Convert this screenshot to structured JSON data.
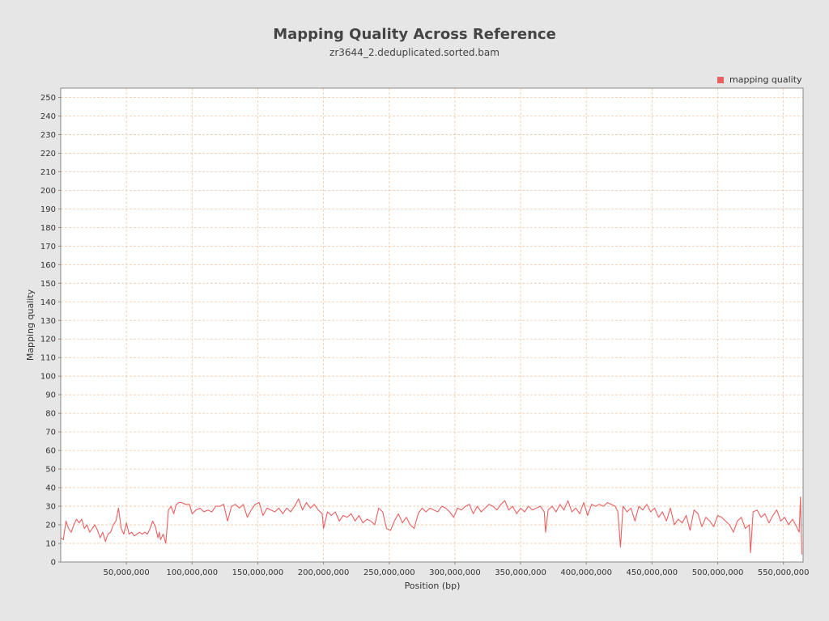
{
  "chart_data": {
    "type": "line",
    "title": "Mapping Quality Across Reference",
    "subtitle": "zr3644_2.deduplicated.sorted.bam",
    "xlabel": "Position (bp)",
    "ylabel": "Mapping quality",
    "xlim": [
      0,
      565000000
    ],
    "ylim": [
      0,
      255
    ],
    "x_ticks": [
      50000000,
      100000000,
      150000000,
      200000000,
      250000000,
      300000000,
      350000000,
      400000000,
      450000000,
      500000000,
      550000000
    ],
    "x_tick_labels": [
      "50,000,000",
      "100,000,000",
      "150,000,000",
      "200,000,000",
      "250,000,000",
      "300,000,000",
      "350,000,000",
      "400,000,000",
      "450,000,000",
      "500,000,000",
      "550,000,000"
    ],
    "y_ticks": [
      0,
      10,
      20,
      30,
      40,
      50,
      60,
      70,
      80,
      90,
      100,
      110,
      120,
      130,
      140,
      150,
      160,
      170,
      180,
      190,
      200,
      210,
      220,
      230,
      240,
      250
    ],
    "grid": true,
    "legend_position": "top-right",
    "series": [
      {
        "name": "mapping quality",
        "color": "#e86060",
        "x": [
          0,
          2000000,
          4000000,
          6000000,
          8000000,
          10000000,
          12000000,
          14000000,
          16000000,
          18000000,
          20000000,
          22000000,
          24000000,
          26000000,
          28000000,
          30000000,
          32000000,
          34000000,
          36000000,
          38000000,
          40000000,
          42000000,
          44000000,
          46000000,
          48000000,
          50000000,
          52000000,
          54000000,
          56000000,
          58000000,
          60000000,
          62000000,
          64000000,
          66000000,
          68000000,
          70000000,
          72000000,
          74000000,
          75000000,
          76000000,
          78000000,
          80000000,
          82000000,
          84000000,
          86000000,
          88000000,
          90000000,
          92000000,
          95000000,
          98000000,
          100000000,
          103000000,
          106000000,
          109000000,
          112000000,
          115000000,
          118000000,
          121000000,
          124000000,
          127000000,
          130000000,
          133000000,
          136000000,
          139000000,
          142000000,
          145000000,
          148000000,
          151000000,
          154000000,
          157000000,
          160000000,
          163000000,
          166000000,
          169000000,
          172000000,
          175000000,
          178000000,
          181000000,
          184000000,
          187000000,
          190000000,
          193000000,
          196000000,
          199000000,
          200000000,
          203000000,
          206000000,
          209000000,
          212000000,
          215000000,
          218000000,
          221000000,
          224000000,
          227000000,
          230000000,
          233000000,
          236000000,
          239000000,
          242000000,
          245000000,
          248000000,
          251000000,
          254000000,
          257000000,
          260000000,
          263000000,
          266000000,
          269000000,
          272000000,
          275000000,
          278000000,
          281000000,
          284000000,
          287000000,
          290000000,
          293000000,
          296000000,
          299000000,
          302000000,
          305000000,
          308000000,
          311000000,
          314000000,
          317000000,
          320000000,
          323000000,
          326000000,
          329000000,
          332000000,
          335000000,
          338000000,
          341000000,
          344000000,
          347000000,
          350000000,
          353000000,
          356000000,
          359000000,
          362000000,
          365000000,
          368000000,
          369000000,
          371000000,
          374000000,
          377000000,
          380000000,
          383000000,
          386000000,
          389000000,
          392000000,
          395000000,
          398000000,
          401000000,
          404000000,
          407000000,
          410000000,
          413000000,
          416000000,
          419000000,
          422000000,
          424000000,
          426000000,
          428000000,
          431000000,
          434000000,
          437000000,
          440000000,
          443000000,
          446000000,
          449000000,
          452000000,
          455000000,
          458000000,
          461000000,
          464000000,
          467000000,
          470000000,
          473000000,
          476000000,
          479000000,
          482000000,
          485000000,
          488000000,
          491000000,
          494000000,
          497000000,
          500000000,
          503000000,
          506000000,
          509000000,
          512000000,
          515000000,
          518000000,
          521000000,
          524000000,
          525000000,
          527000000,
          530000000,
          533000000,
          536000000,
          539000000,
          542000000,
          545000000,
          548000000,
          551000000,
          554000000,
          557000000,
          560000000,
          562000000,
          563000000,
          564000000
        ],
        "values": [
          13,
          12,
          22,
          18,
          16,
          20,
          23,
          21,
          23,
          18,
          20,
          16,
          18,
          20,
          17,
          13,
          16,
          11,
          15,
          16,
          20,
          22,
          29,
          18,
          15,
          21,
          15,
          16,
          14,
          15,
          16,
          15,
          16,
          15,
          18,
          22,
          19,
          13,
          16,
          12,
          15,
          10,
          28,
          30,
          26,
          31,
          32,
          32,
          31,
          31,
          26,
          28,
          29,
          27,
          28,
          27,
          30,
          30,
          31,
          22,
          30,
          31,
          29,
          31,
          24,
          28,
          31,
          32,
          25,
          29,
          28,
          27,
          29,
          26,
          29,
          27,
          30,
          34,
          28,
          32,
          29,
          31,
          28,
          26,
          18,
          27,
          25,
          27,
          22,
          25,
          24,
          26,
          22,
          25,
          21,
          23,
          22,
          20,
          29,
          27,
          18,
          17,
          22,
          26,
          21,
          24,
          20,
          18,
          26,
          29,
          27,
          29,
          28,
          27,
          30,
          29,
          27,
          24,
          29,
          28,
          30,
          31,
          26,
          30,
          27,
          29,
          31,
          30,
          28,
          31,
          33,
          28,
          30,
          26,
          29,
          27,
          30,
          28,
          29,
          30,
          27,
          16,
          28,
          30,
          27,
          31,
          28,
          33,
          27,
          29,
          26,
          32,
          25,
          31,
          30,
          31,
          30,
          32,
          31,
          30,
          27,
          8,
          30,
          27,
          29,
          22,
          30,
          28,
          31,
          27,
          29,
          24,
          27,
          22,
          29,
          20,
          23,
          21,
          25,
          17,
          28,
          26,
          19,
          24,
          22,
          19,
          25,
          24,
          22,
          20,
          16,
          22,
          24,
          18,
          20,
          5,
          27,
          28,
          24,
          26,
          21,
          25,
          28,
          22,
          24,
          20,
          23,
          19,
          16,
          35,
          4
        ]
      }
    ]
  }
}
